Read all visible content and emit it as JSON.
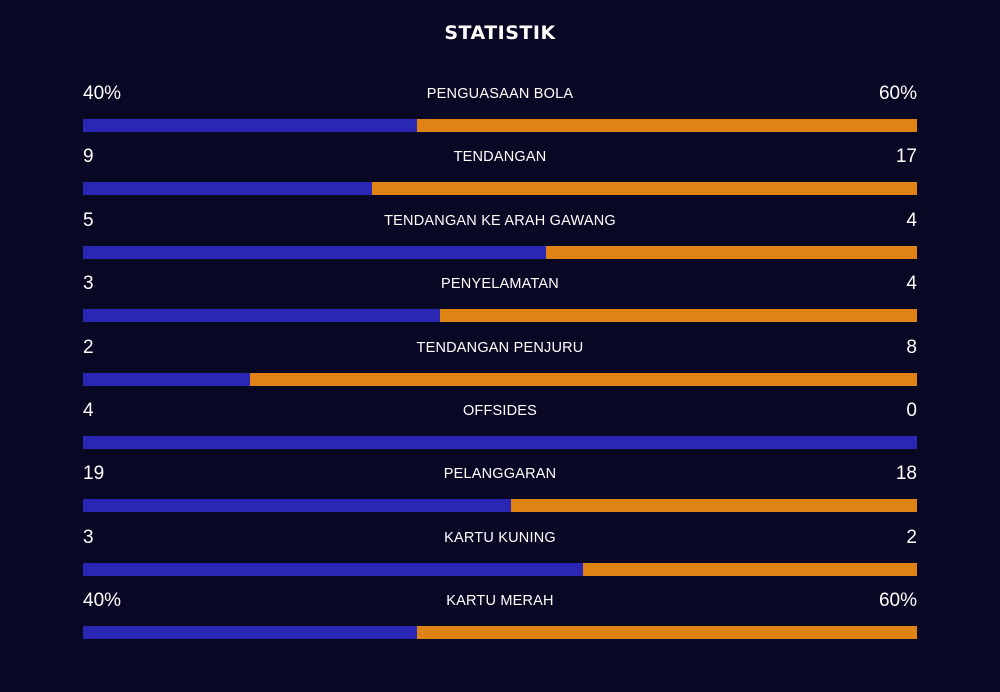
{
  "title": "STATISTIK",
  "colors": {
    "background": "#080824",
    "home_bar": "#2a27b4",
    "away_bar": "#df8314",
    "text": "#ffffff"
  },
  "stats": [
    {
      "label": "PENGUASAAN BOLA",
      "home": "40%",
      "away": "60%",
      "home_share": 0.4
    },
    {
      "label": "TENDANGAN",
      "home": "9",
      "away": "17",
      "home_share": 0.3462
    },
    {
      "label": "TENDANGAN KE ARAH GAWANG",
      "home": "5",
      "away": "4",
      "home_share": 0.5556
    },
    {
      "label": "PENYELAMATAN",
      "home": "3",
      "away": "4",
      "home_share": 0.4286
    },
    {
      "label": "TENDANGAN PENJURU",
      "home": "2",
      "away": "8",
      "home_share": 0.2
    },
    {
      "label": "OFFSIDES",
      "home": "4",
      "away": "0",
      "home_share": 1.0
    },
    {
      "label": "PELANGGARAN",
      "home": "19",
      "away": "18",
      "home_share": 0.5135
    },
    {
      "label": "KARTU KUNING",
      "home": "3",
      "away": "2",
      "home_share": 0.6
    },
    {
      "label": "KARTU MERAH",
      "home": "40%",
      "away": "60%",
      "home_share": 0.4
    }
  ]
}
